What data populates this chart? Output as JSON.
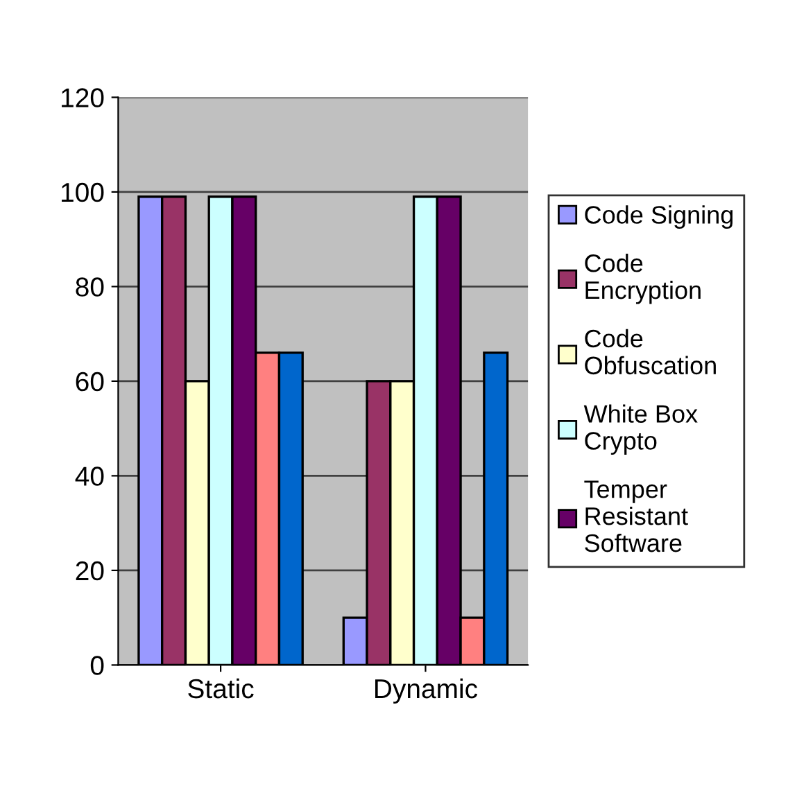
{
  "chart_data": {
    "type": "bar",
    "categories": [
      "Static",
      "Dynamic"
    ],
    "series": [
      {
        "name": "Code Signing",
        "color": "#9999ff",
        "values": [
          99,
          10
        ]
      },
      {
        "name": "Code\nEncryption",
        "color": "#993366",
        "values": [
          99,
          60
        ]
      },
      {
        "name": "Code\nObfuscation",
        "color": "#ffffcc",
        "values": [
          60,
          60
        ]
      },
      {
        "name": "White Box\nCrypto",
        "color": "#ccffff",
        "values": [
          99,
          99
        ]
      },
      {
        "name": "Temper\nResistant\nSoftware",
        "color": "#660066",
        "values": [
          99,
          99
        ]
      },
      {
        "color": "#ff8080",
        "values": [
          66,
          10
        ]
      },
      {
        "color": "#0066cc",
        "values": [
          66,
          66
        ]
      }
    ],
    "ylim": [
      0,
      120
    ],
    "yticks": [
      0,
      20,
      40,
      60,
      80,
      100,
      120
    ],
    "grid": "y",
    "legend": "right"
  }
}
